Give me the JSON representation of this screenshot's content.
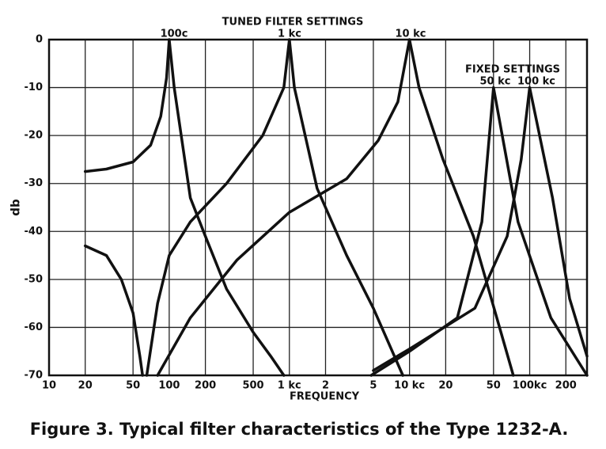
{
  "chart_data": {
    "type": "line",
    "title": "TUNED FILTER SETTINGS",
    "annotations": [
      "100c",
      "1 kc",
      "10 kc",
      "FIXED SETTINGS",
      "50 kc",
      "100 kc"
    ],
    "xlabel": "FREQUENCY",
    "ylabel": "db",
    "caption": "Figure 3.  Typical filter characteristics of the Type 1232-A.",
    "xscale": "log",
    "xlim": [
      10,
      300000
    ],
    "ylim": [
      -70,
      0
    ],
    "xticks": [
      10,
      20,
      50,
      100,
      200,
      500,
      {
        "value": 1000,
        "label": "1 kc"
      },
      {
        "value": 2000,
        "label": "2"
      },
      {
        "value": 5000,
        "label": "5"
      },
      {
        "value": 10000,
        "label": "10 kc"
      },
      {
        "value": 20000,
        "label": "20"
      },
      {
        "value": 50000,
        "label": "50"
      },
      {
        "value": 100000,
        "label": "100kc"
      },
      {
        "value": 200000,
        "label": "200"
      }
    ],
    "yticks": [
      0,
      -10,
      -20,
      -30,
      -40,
      -50,
      -60,
      -70
    ],
    "grid": true,
    "series": [
      {
        "color": "#111111",
        "x": [
          20,
          30,
          50,
          70,
          85,
          95,
          100,
          110,
          150,
          200,
          300,
          500,
          700,
          900
        ],
        "values": [
          -27.5,
          -27,
          -25.5,
          -22,
          -16,
          -8,
          0,
          -10,
          -33,
          -41,
          -52,
          -61,
          -66,
          -70
        ]
      },
      {
        "color": "#111111",
        "x": [
          20,
          30,
          40,
          50,
          57,
          60,
          61,
          65,
          80,
          100,
          150,
          300,
          600,
          900,
          1000,
          1100,
          1700,
          3000,
          5000,
          8800
        ],
        "values": [
          -43,
          -45,
          -50,
          -57,
          -66,
          -70,
          null,
          -70,
          -55,
          -45,
          -38,
          -30,
          -20,
          -10,
          0,
          -10,
          -31,
          -45,
          -56,
          -70
        ]
      },
      {
        "color": "#111111",
        "x": [
          80,
          150,
          365,
          1000,
          3000,
          5500,
          8000,
          10000,
          12000,
          19000,
          34000,
          73000
        ],
        "values": [
          -70,
          -58,
          -46,
          -36,
          -29,
          -21,
          -13,
          0,
          -10,
          -25,
          -41,
          -70
        ]
      },
      {
        "color": "#111111",
        "x": [
          4800,
          10000,
          25000,
          40000,
          50000,
          80000,
          150000,
          300000
        ],
        "values": [
          -70,
          -65,
          -58,
          -38,
          -10,
          -38,
          -58,
          -70
        ]
      },
      {
        "color": "#111111",
        "x": [
          5000,
          10000,
          35000,
          65000,
          85000,
          100000,
          155000,
          215000,
          300000
        ],
        "values": [
          -69,
          -64.5,
          -56,
          -41,
          -25,
          -10,
          -33,
          -54,
          -66
        ]
      }
    ]
  }
}
